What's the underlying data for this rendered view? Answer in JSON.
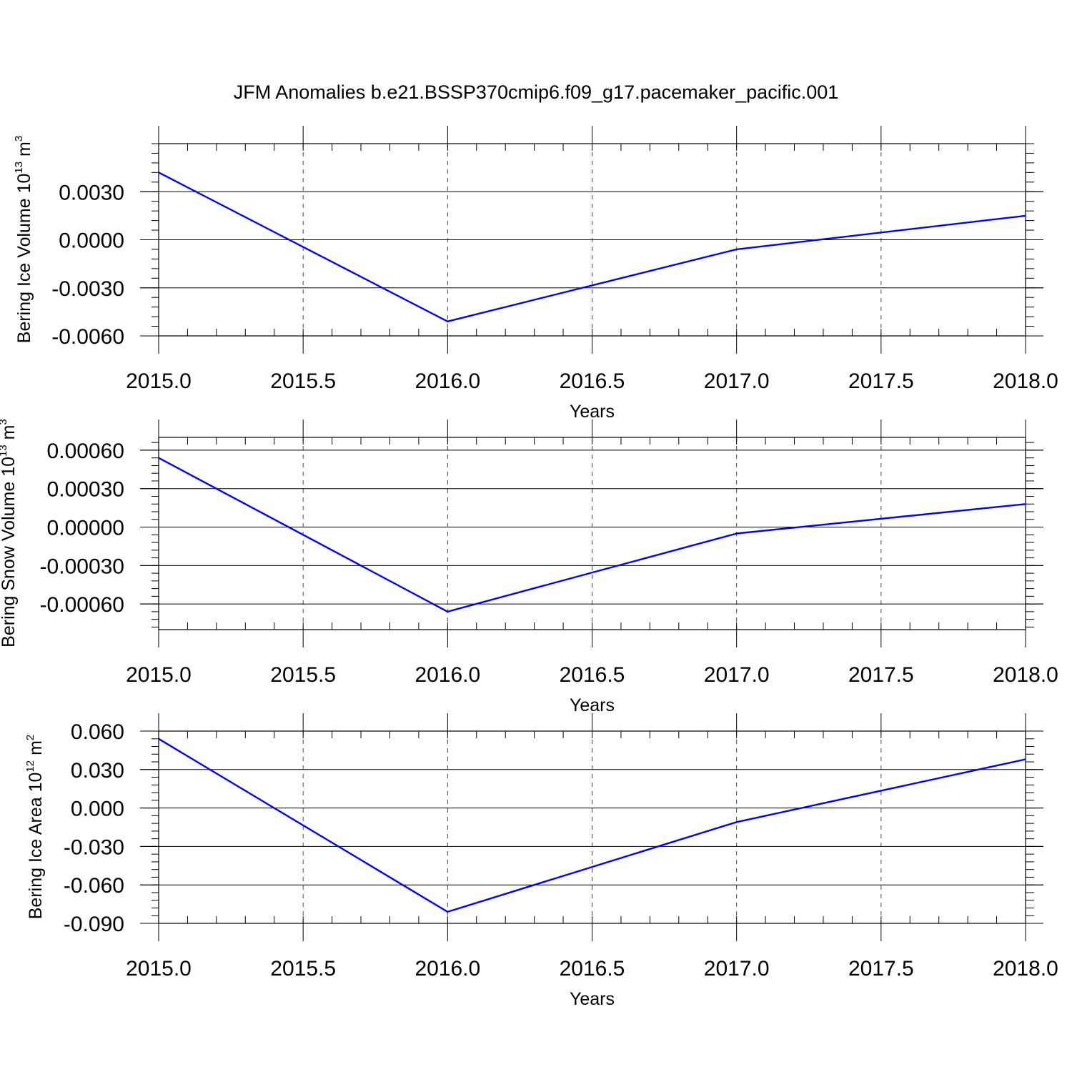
{
  "title": "JFM Anomalies b.e21.BSSP370cmip6.f09_g17.pacemaker_pacific.001",
  "colors": {
    "line": "#0000ff",
    "grid": "#444444",
    "frame": "#000000"
  },
  "chart_data": [
    {
      "type": "line",
      "title": "",
      "xlabel": "Years",
      "ylabel": {
        "main": "Bering Ice Volume 10",
        "exp": "13",
        "unit": " m",
        "unit_exp": "3"
      },
      "x": [
        2015,
        2016,
        2017,
        2018
      ],
      "series": [
        {
          "values": [
            0.0042,
            -0.0051,
            -0.0006,
            0.0015
          ]
        }
      ],
      "xlim": [
        2015,
        2018
      ],
      "ylim": [
        -0.006,
        0.006
      ],
      "xticks": [
        2015.0,
        2015.5,
        2016.0,
        2016.5,
        2017.0,
        2017.5,
        2018.0
      ],
      "xtick_labels": [
        "2015.0",
        "2015.5",
        "2016.0",
        "2016.5",
        "2017.0",
        "2017.5",
        "2018.0"
      ],
      "yticks": [
        0.003,
        0.0,
        -0.003,
        -0.006
      ],
      "ytick_labels": [
        "0.0030",
        "0.0000",
        "-0.0030",
        "-0.0060"
      ],
      "grid": "vertical-dashed"
    },
    {
      "type": "line",
      "title": "",
      "xlabel": "Years",
      "ylabel": {
        "main": "Bering Snow Volume 10",
        "exp": "13",
        "unit": " m",
        "unit_exp": "3"
      },
      "x": [
        2015,
        2016,
        2017,
        2018
      ],
      "series": [
        {
          "values": [
            0.00054,
            -0.00066,
            -5e-05,
            0.00018
          ]
        }
      ],
      "xlim": [
        2015,
        2018
      ],
      "ylim": [
        -0.0008,
        0.0007
      ],
      "xticks": [
        2015.0,
        2015.5,
        2016.0,
        2016.5,
        2017.0,
        2017.5,
        2018.0
      ],
      "xtick_labels": [
        "2015.0",
        "2015.5",
        "2016.0",
        "2016.5",
        "2017.0",
        "2017.5",
        "2018.0"
      ],
      "yticks": [
        0.0006,
        0.0003,
        0.0,
        -0.0003,
        -0.0006
      ],
      "ytick_labels": [
        "0.00060",
        "0.00030",
        "0.00000",
        "-0.00030",
        "-0.00060"
      ],
      "grid": "vertical-dashed"
    },
    {
      "type": "line",
      "title": "",
      "xlabel": "Years",
      "ylabel": {
        "main": "Bering Ice Area 10",
        "exp": "12",
        "unit": " m",
        "unit_exp": "2"
      },
      "x": [
        2015,
        2016,
        2017,
        2018
      ],
      "series": [
        {
          "values": [
            0.054,
            -0.081,
            -0.011,
            0.038
          ]
        }
      ],
      "xlim": [
        2015,
        2018
      ],
      "ylim": [
        -0.09,
        0.06
      ],
      "xticks": [
        2015.0,
        2015.5,
        2016.0,
        2016.5,
        2017.0,
        2017.5,
        2018.0
      ],
      "xtick_labels": [
        "2015.0",
        "2015.5",
        "2016.0",
        "2016.5",
        "2017.0",
        "2017.5",
        "2018.0"
      ],
      "yticks": [
        0.06,
        0.03,
        0.0,
        -0.03,
        -0.06,
        -0.09
      ],
      "ytick_labels": [
        "0.060",
        "0.030",
        "0.000",
        "-0.030",
        "-0.060",
        "-0.090"
      ],
      "grid": "vertical-dashed"
    }
  ]
}
